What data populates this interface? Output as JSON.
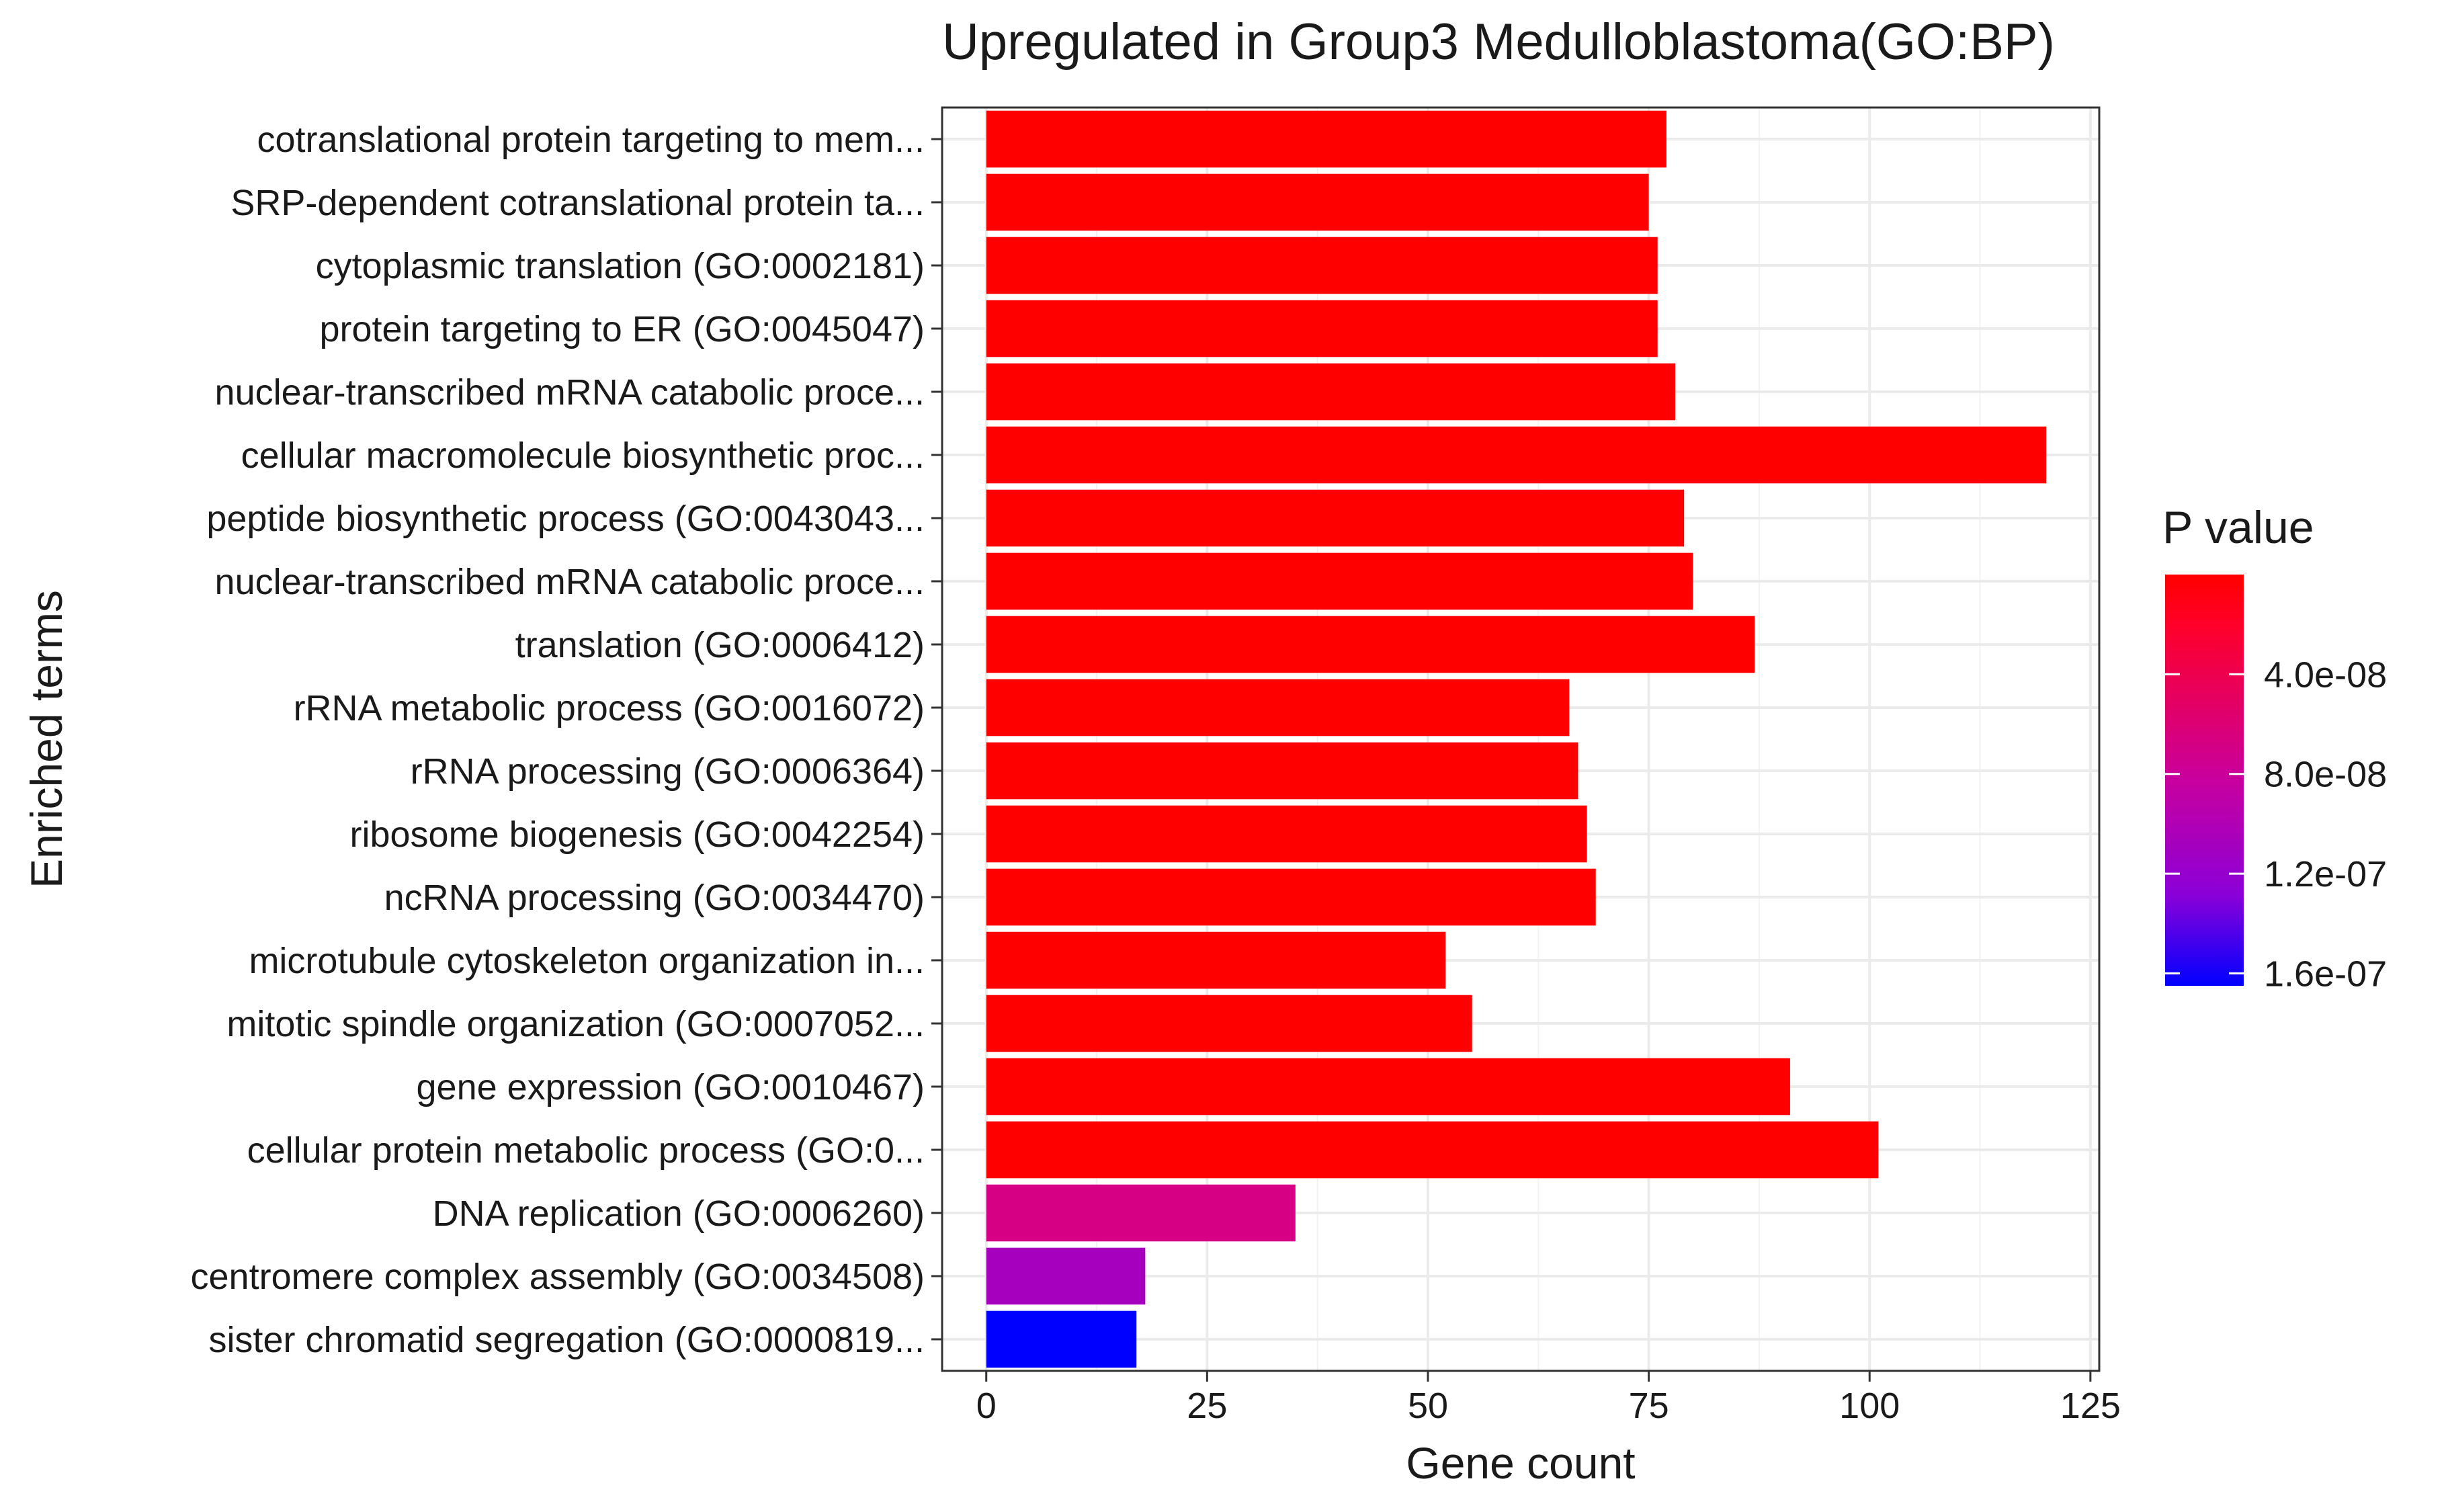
{
  "chart_data": {
    "type": "bar",
    "orientation": "horizontal",
    "title": "Upregulated in Group3 Medulloblastoma(GO:BP)",
    "xlabel": "Gene count",
    "ylabel": "Enriched terms",
    "xlim": [
      -5,
      126
    ],
    "x_ticks": [
      0,
      25,
      50,
      75,
      100,
      125
    ],
    "grid": true,
    "categories": [
      "cotranslational protein targeting to mem...",
      "SRP-dependent cotranslational protein ta...",
      "cytoplasmic translation (GO:0002181)",
      "protein targeting to ER (GO:0045047)",
      "nuclear-transcribed mRNA catabolic proce...",
      "cellular macromolecule biosynthetic proc...",
      "peptide biosynthetic process (GO:0043043...",
      "nuclear-transcribed mRNA catabolic proce...",
      "translation (GO:0006412)",
      "rRNA metabolic process (GO:0016072)",
      "rRNA processing (GO:0006364)",
      "ribosome biogenesis (GO:0042254)",
      "ncRNA processing (GO:0034470)",
      "microtubule cytoskeleton organization in...",
      "mitotic spindle organization (GO:0007052...",
      "gene expression (GO:0010467)",
      "cellular protein metabolic process (GO:0...",
      "DNA replication (GO:0006260)",
      "centromere complex assembly (GO:0034508)",
      "sister chromatid segregation (GO:0000819..."
    ],
    "values": [
      77,
      75,
      76,
      76,
      78,
      120,
      79,
      80,
      87,
      66,
      67,
      68,
      69,
      52,
      55,
      91,
      101,
      35,
      18,
      17
    ],
    "pvalues": [
      1e-11,
      1e-11,
      1e-11,
      1e-11,
      1e-11,
      1e-11,
      1e-11,
      1e-11,
      1e-11,
      1e-11,
      1e-11,
      1e-11,
      1e-11,
      1e-11,
      1e-11,
      1e-11,
      1e-11,
      6.8e-08,
      1.08e-07,
      1.65e-07
    ],
    "legend": {
      "title": "P value",
      "position": "right",
      "range": [
        0,
        1.65e-07
      ],
      "ticks": [
        4e-08,
        8e-08,
        1.2e-07,
        1.6e-07
      ],
      "tick_labels": [
        "4.0e-08",
        "8.0e-08",
        "1.2e-07",
        "1.6e-07"
      ],
      "low_color": "#ff0000",
      "high_color": "#0000ff"
    }
  }
}
